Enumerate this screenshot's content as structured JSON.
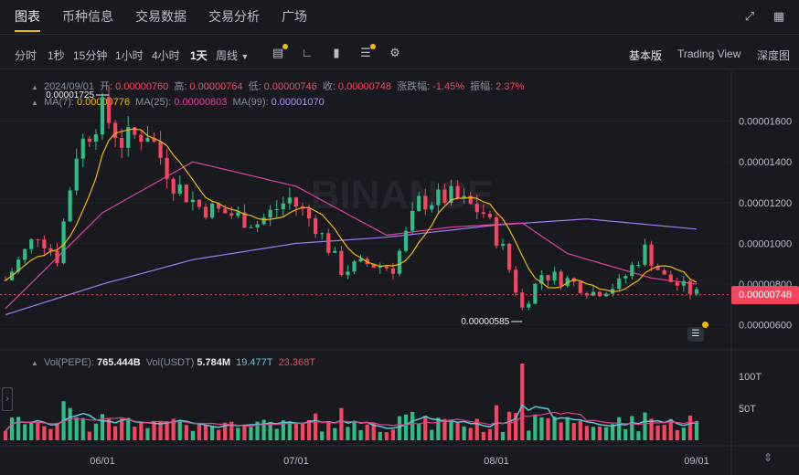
{
  "nav": {
    "tabs": [
      "图表",
      "币种信息",
      "交易数据",
      "交易分析",
      "广场"
    ],
    "active_index": 0,
    "icons": [
      "expand-icon",
      "grid-icon"
    ]
  },
  "toolbar": {
    "intervals": [
      "分时",
      "1秒",
      "15分钟",
      "1小时",
      "4小时",
      "1天",
      "周线"
    ],
    "active_interval": "1天",
    "tools": [
      "indicator-icon",
      "draw-icon",
      "candle-type-icon",
      "depth-settings-icon",
      "gear-icon"
    ],
    "views": [
      "基本版",
      "Trading View",
      "深度图"
    ],
    "active_view": "基本版"
  },
  "ohlc": {
    "date": "2024/09/01",
    "open_label": "开:",
    "open": "0.00000760",
    "high_label": "高:",
    "high": "0.00000764",
    "low_label": "低:",
    "low": "0.00000746",
    "close_label": "收:",
    "close": "0.00000748",
    "change_label": "涨跌幅:",
    "change": "-1.45%",
    "amp_label": "振幅:",
    "amp": "2.37%"
  },
  "ma": {
    "ma7_label": "MA(7):",
    "ma7": "0.00000776",
    "ma25_label": "MA(25):",
    "ma25": "0.00000803",
    "ma99_label": "MA(99):",
    "ma99": "0.00001070"
  },
  "vol": {
    "pepe_label": "Vol(PEPE):",
    "pepe": "765.444B",
    "usdt_label": "Vol(USDT)",
    "usdt": "5.784M",
    "ma1": "19.477T",
    "ma2": "23.368T"
  },
  "price_axis": [
    "0.00001600",
    "0.00001400",
    "0.00001200",
    "0.00001000",
    "0.00000800",
    "0.00000600"
  ],
  "vol_axis": [
    "100T",
    "50T"
  ],
  "date_axis": [
    "06/01",
    "07/01",
    "08/01",
    "09/01"
  ],
  "high_label": "0.00001725",
  "low_label": "0.00000585",
  "last_price": "0.00000748",
  "colors": {
    "up": "#2ebd85",
    "down": "#f6465d",
    "ma7": "#f0b90b",
    "ma25": "#e040a0",
    "ma99": "#a07cf0",
    "vol_ma1": "#5ac8d8",
    "vol_ma2": "#e0408a"
  },
  "chart_data": {
    "type": "candlestick",
    "title": "",
    "x_range": [
      "2024-05-17",
      "2024-09-01"
    ],
    "ylim": [
      5e-06,
      1.71e-05
    ],
    "anchor_points": [
      {
        "date": "2024-05-17",
        "price": 8.2e-06
      },
      {
        "date": "2024-05-22",
        "price": 1.05e-05
      },
      {
        "date": "2024-05-25",
        "price": 9.3e-06
      },
      {
        "date": "2024-05-28",
        "price": 1.45e-05
      },
      {
        "date": "2024-06-01",
        "price": 1.65e-05
      },
      {
        "date": "2024-06-04",
        "price": 1.5e-05
      },
      {
        "date": "2024-06-08",
        "price": 1.55e-05
      },
      {
        "date": "2024-06-12",
        "price": 1.3e-05
      },
      {
        "date": "2024-06-16",
        "price": 1.18e-05
      },
      {
        "date": "2024-06-20",
        "price": 1.15e-05
      },
      {
        "date": "2024-06-25",
        "price": 1.1e-05
      },
      {
        "date": "2024-06-30",
        "price": 1.22e-05
      },
      {
        "date": "2024-07-04",
        "price": 1.09e-05
      },
      {
        "date": "2024-07-08",
        "price": 8.7e-06
      },
      {
        "date": "2024-07-12",
        "price": 9e-06
      },
      {
        "date": "2024-07-16",
        "price": 8.8e-06
      },
      {
        "date": "2024-07-20",
        "price": 1.2e-05
      },
      {
        "date": "2024-07-25",
        "price": 1.23e-05
      },
      {
        "date": "2024-07-30",
        "price": 1.15e-05
      },
      {
        "date": "2024-08-02",
        "price": 9.7e-06
      },
      {
        "date": "2024-08-05",
        "price": 6.8e-06
      },
      {
        "date": "2024-08-08",
        "price": 8.5e-06
      },
      {
        "date": "2024-08-12",
        "price": 8.2e-06
      },
      {
        "date": "2024-08-16",
        "price": 7.6e-06
      },
      {
        "date": "2024-08-20",
        "price": 8e-06
      },
      {
        "date": "2024-08-24",
        "price": 9.7e-06
      },
      {
        "date": "2024-08-27",
        "price": 8.3e-06
      },
      {
        "date": "2024-09-01",
        "price": 7.5e-06
      }
    ],
    "ma99_points": [
      {
        "date": "2024-05-17",
        "price": 6.5e-06
      },
      {
        "date": "2024-06-01",
        "price": 8e-06
      },
      {
        "date": "2024-06-15",
        "price": 9.2e-06
      },
      {
        "date": "2024-07-01",
        "price": 1e-05
      },
      {
        "date": "2024-07-15",
        "price": 1.03e-05
      },
      {
        "date": "2024-08-01",
        "price": 1.09e-05
      },
      {
        "date": "2024-08-15",
        "price": 1.12e-05
      },
      {
        "date": "2024-09-01",
        "price": 1.07e-05
      }
    ],
    "ma25_points": [
      {
        "date": "2024-05-17",
        "price": 6.8e-06
      },
      {
        "date": "2024-06-01",
        "price": 1.15e-05
      },
      {
        "date": "2024-06-15",
        "price": 1.4e-05
      },
      {
        "date": "2024-07-01",
        "price": 1.28e-05
      },
      {
        "date": "2024-07-15",
        "price": 1.04e-05
      },
      {
        "date": "2024-07-25",
        "price": 1.08e-05
      },
      {
        "date": "2024-08-05",
        "price": 1.1e-05
      },
      {
        "date": "2024-08-12",
        "price": 9.5e-06
      },
      {
        "date": "2024-08-25",
        "price": 8.3e-06
      },
      {
        "date": "2024-09-01",
        "price": 8e-06
      }
    ],
    "volume_ylim": [
      0,
      120
    ],
    "volume_unit": "T",
    "volume_spike": {
      "date": "2024-08-05",
      "value": 120
    }
  }
}
